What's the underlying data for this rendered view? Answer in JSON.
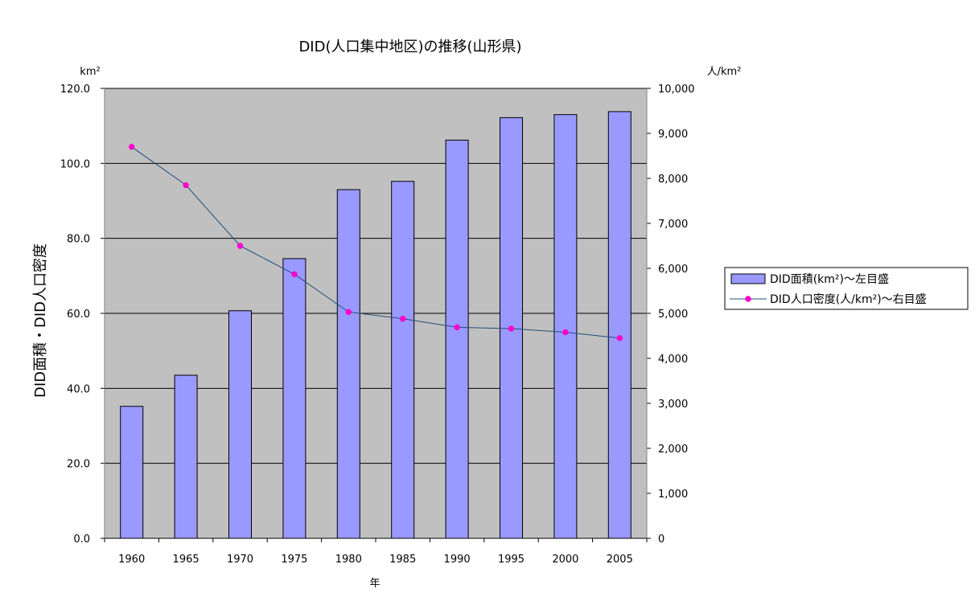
{
  "chart_data": {
    "type": "bar",
    "title": "DID(人口集中地区)の推移(山形県)",
    "xlabel": "年",
    "ylabel": "DID面積・DID人口密度",
    "y_unit_left": "km²",
    "y_unit_right": "人/km²",
    "categories": [
      "1960",
      "1965",
      "1970",
      "1975",
      "1980",
      "1985",
      "1990",
      "1995",
      "2000",
      "2005"
    ],
    "ylim": [
      0,
      120
    ],
    "y2lim": [
      0,
      10000
    ],
    "yticks": [
      "0.0",
      "20.0",
      "40.0",
      "60.0",
      "80.0",
      "100.0",
      "120.0"
    ],
    "y2ticks": [
      "0",
      "1,000",
      "2,000",
      "3,000",
      "4,000",
      "5,000",
      "6,000",
      "7,000",
      "8,000",
      "9,000",
      "10,000"
    ],
    "grid": true,
    "legend_position": "right",
    "plot_background": "#c0c0c0",
    "series": [
      {
        "name": "DID面積(km²)～左目盛",
        "type": "bar",
        "axis": "left",
        "color": "#9999ff",
        "values": [
          35.2,
          43.5,
          60.7,
          74.6,
          93.0,
          95.2,
          106.2,
          112.2,
          113.0,
          113.8
        ]
      },
      {
        "name": "DID人口密度(人/km²)～右目盛",
        "type": "line",
        "axis": "right",
        "color": "#1f4e79",
        "marker_color": "#ff00cc",
        "values": [
          8700,
          7850,
          6500,
          5870,
          5030,
          4880,
          4690,
          4660,
          4580,
          4450
        ]
      }
    ]
  }
}
